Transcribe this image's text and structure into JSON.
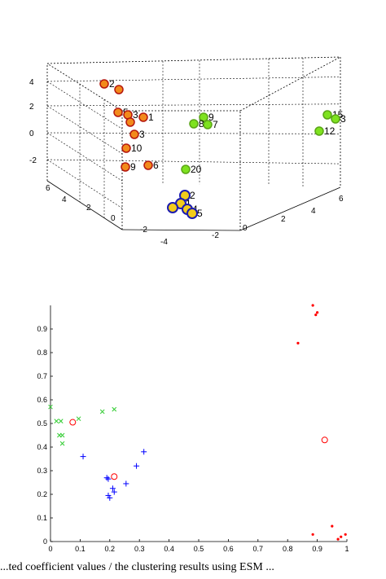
{
  "caption": "...ted coefficient values / the clustering results using ESM ...",
  "chart_data": [
    {
      "type": "scatter3d",
      "axes": {
        "z_ticks": [
          "4",
          "2",
          "0",
          "-2"
        ],
        "y_ticks": [
          "6",
          "4",
          "2",
          "0",
          "-2",
          "-4"
        ],
        "x_ticks": [
          "-2",
          "0",
          "2",
          "4",
          "6"
        ]
      },
      "grid": true,
      "colors": {
        "orange_group": "#f28a1b",
        "green_group": "#7ee21f",
        "blue_group": "#f2cc1b",
        "outline": "#1b1bb0"
      },
      "points": [
        {
          "label": "2",
          "group": "orange"
        },
        {
          "label": "",
          "group": "orange"
        },
        {
          "label": "5",
          "group": "orange"
        },
        {
          "label": "3",
          "group": "orange"
        },
        {
          "label": "1",
          "group": "orange"
        },
        {
          "label": "",
          "group": "orange"
        },
        {
          "label": "3",
          "group": "orange"
        },
        {
          "label": "10",
          "group": "orange"
        },
        {
          "label": "9",
          "group": "orange"
        },
        {
          "label": "6",
          "group": "orange"
        },
        {
          "label": "9",
          "group": "green"
        },
        {
          "label": "8",
          "group": "green"
        },
        {
          "label": "7",
          "group": "green"
        },
        {
          "label": "20",
          "group": "green"
        },
        {
          "label": "15",
          "group": "green"
        },
        {
          "label": "3",
          "group": "green"
        },
        {
          "label": "12",
          "group": "green"
        },
        {
          "label": "2",
          "group": "blue"
        },
        {
          "label": "1",
          "group": "blue"
        },
        {
          "label": "4",
          "group": "blue"
        },
        {
          "label": "5",
          "group": "blue"
        },
        {
          "label": "",
          "group": "blue"
        }
      ]
    },
    {
      "type": "scatter",
      "xlim": [
        0,
        1
      ],
      "ylim": [
        0,
        1
      ],
      "x_ticks": [
        "0",
        "0.1",
        "0.2",
        "0.3",
        "0.4",
        "0.5",
        "0.6",
        "0.7",
        "0.8",
        "0.9",
        "1"
      ],
      "y_ticks": [
        "0",
        "0.1",
        "0.2",
        "0.3",
        "0.4",
        "0.5",
        "0.6",
        "0.7",
        "0.8",
        "0.9"
      ],
      "colors": {
        "red": "#ff0000",
        "green": "#33cc33",
        "blue": "#0000ff"
      },
      "series": [
        {
          "marker": "dot",
          "color": "red",
          "points": [
            [
              0.885,
              1.0
            ],
            [
              0.895,
              0.96
            ],
            [
              0.9,
              0.97
            ],
            [
              0.835,
              0.84
            ],
            [
              0.95,
              0.065
            ],
            [
              0.97,
              0.01
            ],
            [
              0.98,
              0.02
            ],
            [
              0.995,
              0.03
            ],
            [
              0.885,
              0.03
            ]
          ]
        },
        {
          "marker": "x",
          "color": "green",
          "points": [
            [
              0.0,
              0.57
            ],
            [
              0.02,
              0.51
            ],
            [
              0.035,
              0.51
            ],
            [
              0.03,
              0.45
            ],
            [
              0.04,
              0.45
            ],
            [
              0.04,
              0.415
            ],
            [
              0.095,
              0.52
            ],
            [
              0.175,
              0.55
            ],
            [
              0.215,
              0.56
            ]
          ]
        },
        {
          "marker": "plus",
          "color": "blue",
          "points": [
            [
              0.11,
              0.36
            ],
            [
              0.19,
              0.27
            ],
            [
              0.195,
              0.265
            ],
            [
              0.195,
              0.195
            ],
            [
              0.2,
              0.185
            ],
            [
              0.21,
              0.225
            ],
            [
              0.215,
              0.21
            ],
            [
              0.255,
              0.245
            ],
            [
              0.29,
              0.32
            ],
            [
              0.315,
              0.38
            ]
          ]
        },
        {
          "marker": "circle",
          "color": "red",
          "points": [
            [
              0.075,
              0.505
            ],
            [
              0.215,
              0.275
            ],
            [
              0.925,
              0.43
            ]
          ]
        }
      ]
    }
  ]
}
